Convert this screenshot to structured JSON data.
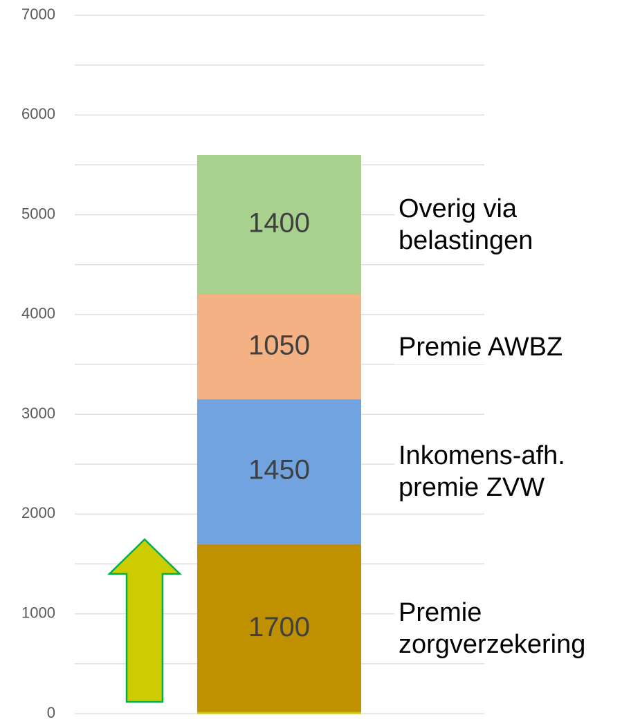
{
  "chart_data": {
    "type": "stacked_bar",
    "categories": [
      null
    ],
    "series": [
      {
        "name": "Premie\nzorgverzekering",
        "color": "#bf9000",
        "values": [
          1700
        ]
      },
      {
        "name": "Inkomens-afh.\npremie ZVW",
        "color": "#70a3e0",
        "values": [
          1450
        ]
      },
      {
        "name": "Premie AWBZ",
        "color": "#f4b183",
        "values": [
          1050
        ]
      },
      {
        "name": "Overig via\nbelastingen",
        "color": "#a9d18e",
        "values": [
          1400
        ]
      }
    ],
    "ylim": [
      0,
      7000
    ],
    "yticks": [
      0,
      1000,
      2000,
      3000,
      4000,
      5000,
      6000,
      7000
    ],
    "minor_gridlines": [
      500,
      1500,
      2500,
      3500,
      4500,
      5500,
      6500
    ],
    "grid": true
  }
}
